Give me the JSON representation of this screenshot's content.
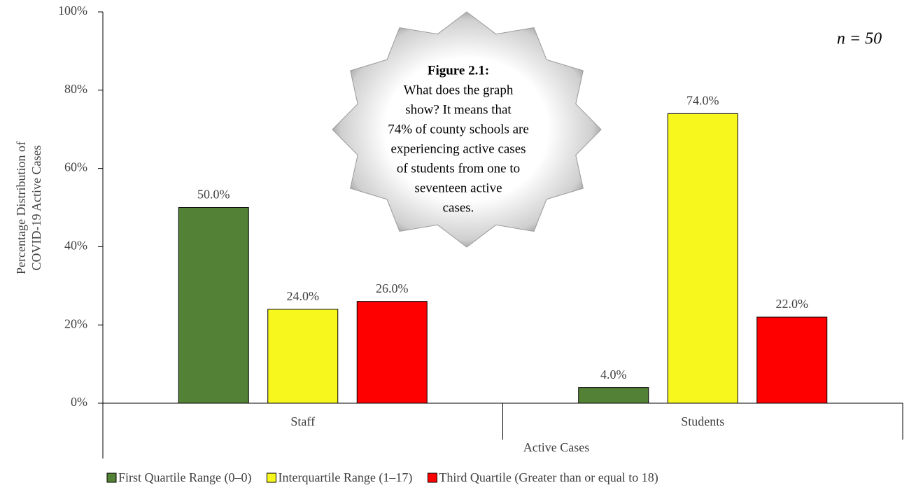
{
  "chart_data": {
    "type": "bar",
    "y_label": [
      "Percentage Distribution of",
      "COVID-19 Active Cases"
    ],
    "x_label": "Active Cases",
    "annotation": "n = 50",
    "callout": {
      "title": "Figure 2.1:",
      "lines": [
        "What does the graph",
        "show?  It means that",
        "74% of county schools are",
        "experiencing  active cases",
        "of students from one to",
        "seventeen active",
        "cases."
      ]
    },
    "categories": [
      "Staff",
      "Students"
    ],
    "series": [
      {
        "name": "First Quartile Range (0–0)",
        "color": "#538135",
        "values": [
          50,
          4
        ],
        "value_labels": [
          "50.0%",
          "4.0%"
        ]
      },
      {
        "name": "Interquartile Range (1–17)",
        "color": "#f7f71e",
        "values": [
          24,
          74
        ],
        "value_labels": [
          "24.0%",
          "74.0%"
        ]
      },
      {
        "name": "Third Quartile (Greater than or equal to 18)",
        "color": "#ff0000",
        "values": [
          26,
          22
        ],
        "value_labels": [
          "26.0%",
          "22.0%"
        ]
      }
    ],
    "ylim": [
      0,
      100
    ],
    "yticks": [
      {
        "value": 0,
        "label": "0%"
      },
      {
        "value": 20,
        "label": "20%"
      },
      {
        "value": 40,
        "label": "40%"
      },
      {
        "value": 60,
        "label": "60%"
      },
      {
        "value": 80,
        "label": "80%"
      },
      {
        "value": 100,
        "label": "100%"
      }
    ],
    "grid": false
  }
}
